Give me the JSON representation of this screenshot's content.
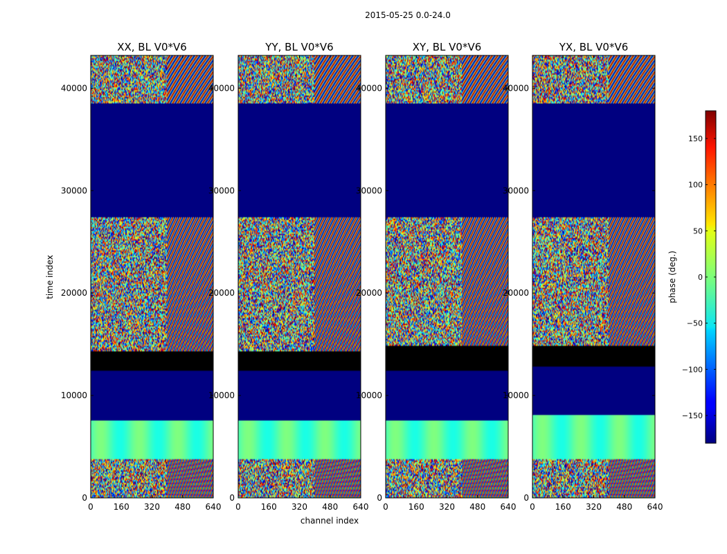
{
  "chart_data": {
    "type": "heatmap",
    "suptitle": "2015-05-25 0.0-24.0",
    "xlabel": "channel index",
    "ylabel": "time index",
    "xlim": [
      0,
      640
    ],
    "ylim": [
      0,
      43200
    ],
    "xticks": [
      0,
      160,
      320,
      480,
      640
    ],
    "yticks": [
      0,
      10000,
      20000,
      30000,
      40000
    ],
    "colorbar": {
      "label": "phase (deg.)",
      "range": [
        -180,
        180
      ],
      "ticks": [
        150,
        100,
        50,
        0,
        -50,
        -100,
        -150
      ],
      "tick_labels": [
        "150",
        "100",
        "50",
        "0",
        "−50",
        "−100",
        "−150"
      ],
      "colormap": "jet"
    },
    "panels": [
      {
        "title": "XX, BL V0*V6",
        "masked_time_range": [
          27500,
          38500
        ]
      },
      {
        "title": "YY, BL V0*V6",
        "masked_time_range": [
          27500,
          38500
        ]
      },
      {
        "title": "XY, BL V0*V6",
        "masked_time_range": [
          27500,
          38500
        ]
      },
      {
        "title": "YX, BL V0*V6",
        "masked_time_range": [
          27500,
          38500
        ]
      }
    ]
  }
}
